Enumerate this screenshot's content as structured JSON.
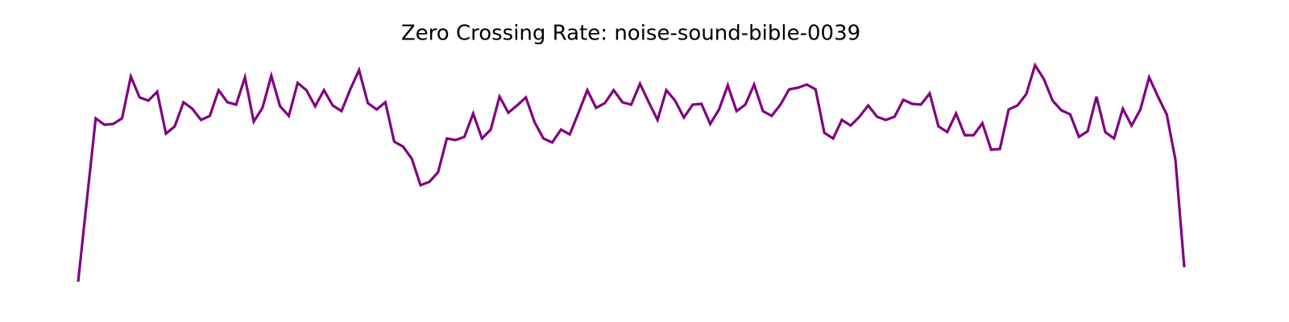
{
  "chart_data": {
    "type": "line",
    "title": "Zero Crossing Rate: noise-sound-bible-0039",
    "series": [
      {
        "name": "zcr",
        "color": "#800080",
        "values": [
          0.03,
          0.132,
          0.233,
          0.225,
          0.226,
          0.233,
          0.285,
          0.259,
          0.255,
          0.266,
          0.214,
          0.223,
          0.253,
          0.245,
          0.231,
          0.236,
          0.268,
          0.253,
          0.25,
          0.284,
          0.229,
          0.246,
          0.286,
          0.248,
          0.236,
          0.277,
          0.268,
          0.248,
          0.268,
          0.249,
          0.242,
          0.269,
          0.293,
          0.252,
          0.244,
          0.253,
          0.204,
          0.198,
          0.183,
          0.15,
          0.154,
          0.166,
          0.208,
          0.206,
          0.21,
          0.239,
          0.208,
          0.219,
          0.26,
          0.24,
          0.249,
          0.259,
          0.228,
          0.208,
          0.203,
          0.219,
          0.213,
          0.24,
          0.268,
          0.246,
          0.252,
          0.268,
          0.253,
          0.25,
          0.276,
          0.253,
          0.231,
          0.268,
          0.255,
          0.234,
          0.25,
          0.251,
          0.226,
          0.244,
          0.274,
          0.242,
          0.25,
          0.275,
          0.242,
          0.236,
          0.25,
          0.269,
          0.271,
          0.275,
          0.269,
          0.215,
          0.208,
          0.231,
          0.224,
          0.235,
          0.249,
          0.235,
          0.231,
          0.235,
          0.256,
          0.251,
          0.25,
          0.264,
          0.223,
          0.216,
          0.239,
          0.212,
          0.212,
          0.227,
          0.194,
          0.195,
          0.244,
          0.249,
          0.263,
          0.299,
          0.282,
          0.255,
          0.243,
          0.238,
          0.21,
          0.217,
          0.26,
          0.216,
          0.208,
          0.245,
          0.224,
          0.244,
          0.284,
          0.26,
          0.238,
          0.181,
          0.048
        ]
      }
    ],
    "ylim": [
      0.02,
      0.31
    ]
  }
}
